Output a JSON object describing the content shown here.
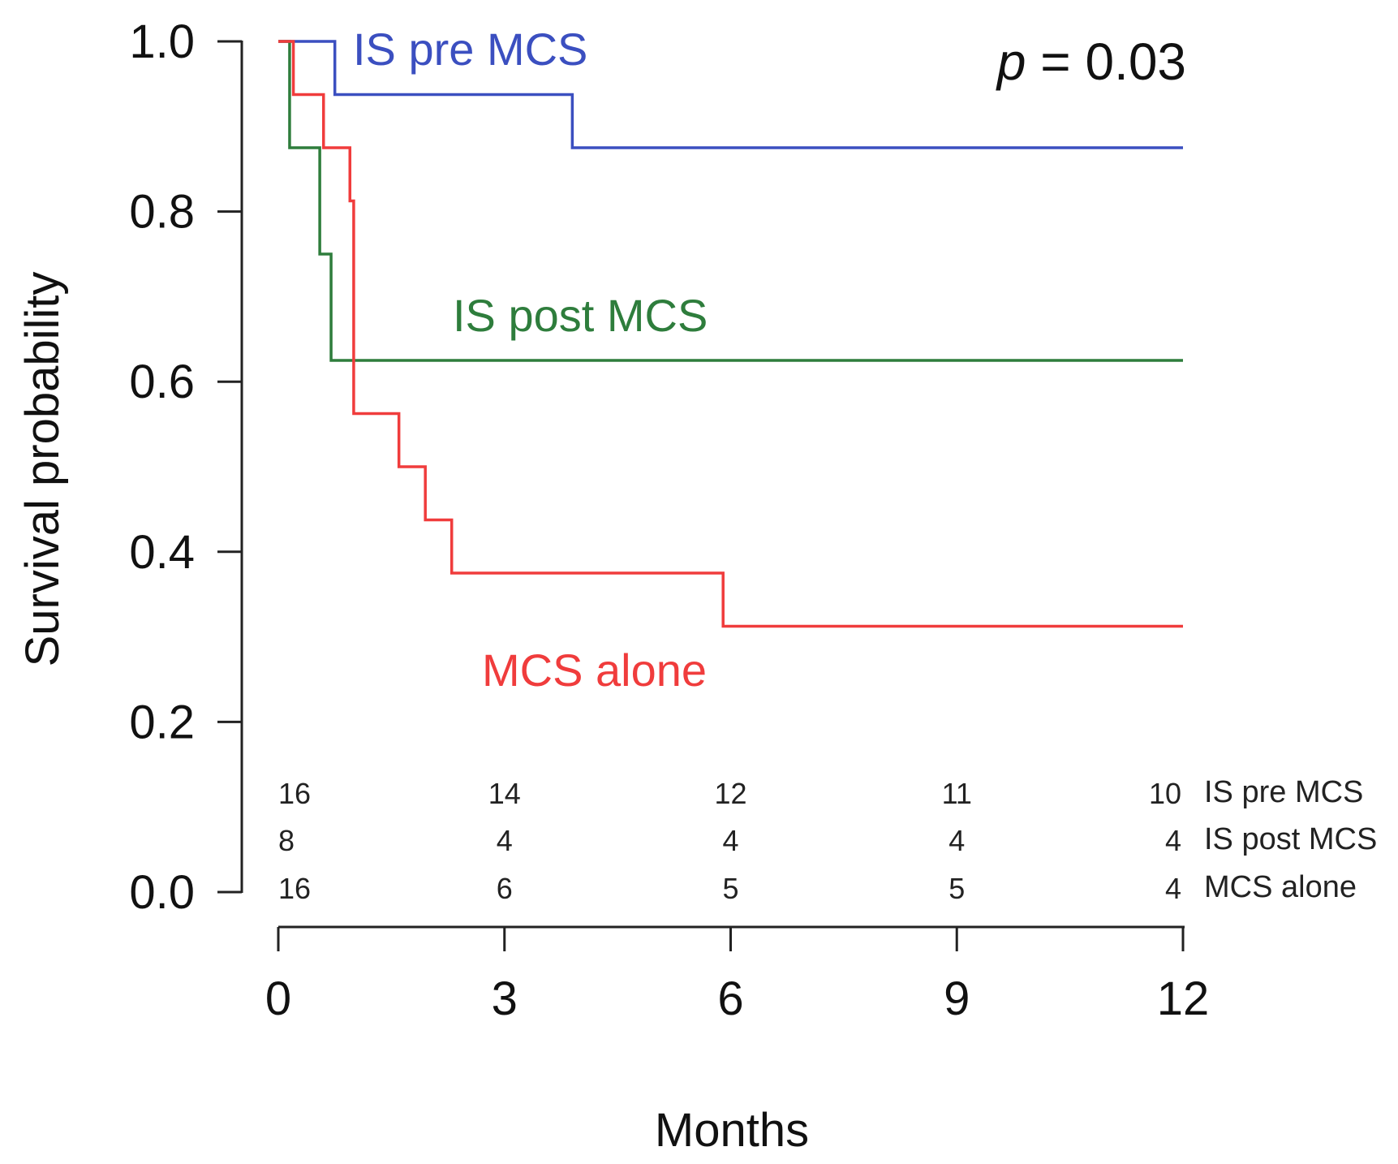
{
  "chart_data": {
    "type": "line",
    "subtype": "kaplan-meier-step",
    "xlabel": "Months",
    "ylabel": "Survival probability",
    "xlim": [
      0,
      12
    ],
    "ylim": [
      0,
      1
    ],
    "xticks": [
      "0",
      "3",
      "6",
      "9",
      "12"
    ],
    "yticks": [
      "0.0",
      "0.2",
      "0.4",
      "0.6",
      "0.8",
      "1.0"
    ],
    "annotation": {
      "p_symbol": "p",
      "p_text": " = 0.03"
    },
    "series": [
      {
        "name": "IS pre MCS",
        "color": "#3b4fc0",
        "x": [
          0,
          0.75,
          3.9,
          12
        ],
        "y": [
          1.0,
          0.9375,
          0.875,
          0.875
        ]
      },
      {
        "name": "IS post MCS",
        "color": "#2e7d3c",
        "x": [
          0,
          0.15,
          0.55,
          0.7,
          12
        ],
        "y": [
          1.0,
          0.875,
          0.75,
          0.625,
          0.625
        ]
      },
      {
        "name": "MCS alone",
        "color": "#f03c3c",
        "x": [
          0,
          0.2,
          0.6,
          0.95,
          1.0,
          1.6,
          1.95,
          2.3,
          5.9,
          12
        ],
        "y": [
          1.0,
          0.9375,
          0.875,
          0.8125,
          0.5625,
          0.5,
          0.4375,
          0.375,
          0.3125,
          0.3125
        ]
      }
    ],
    "number_at_risk": {
      "times": [
        0,
        3,
        6,
        9,
        12
      ],
      "rows": [
        {
          "name": "IS pre MCS",
          "values": [
            "16",
            "14",
            "12",
            "11",
            "10"
          ]
        },
        {
          "name": "IS post MCS",
          "values": [
            "8",
            "4",
            "4",
            "4",
            "4"
          ]
        },
        {
          "name": "MCS alone",
          "values": [
            "16",
            "6",
            "5",
            "5",
            "4"
          ]
        }
      ]
    }
  }
}
